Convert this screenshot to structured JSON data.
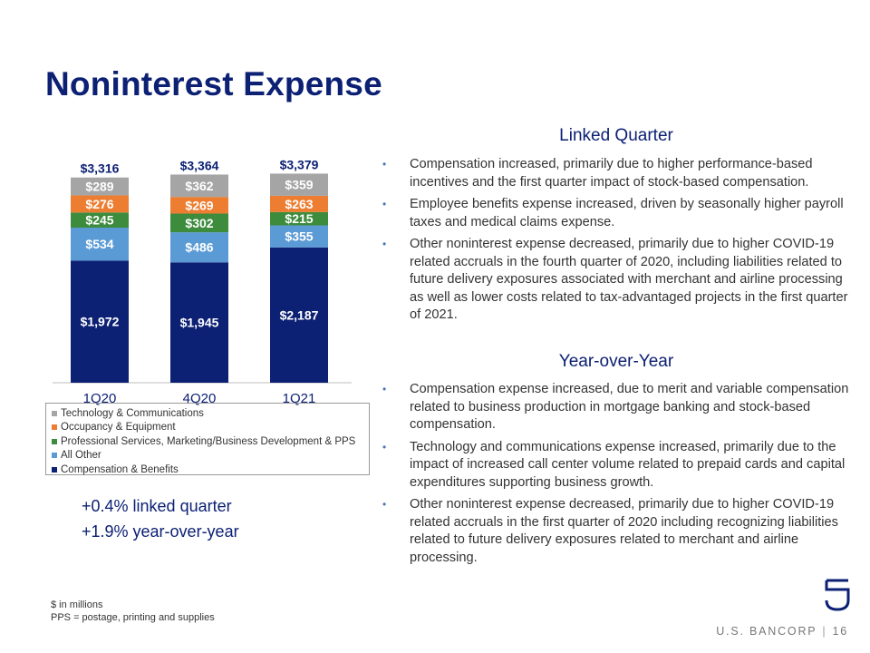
{
  "title": "Noninterest Expense",
  "chart_data": {
    "type": "bar",
    "stacked": true,
    "categories": [
      "1Q20",
      "4Q20",
      "1Q21"
    ],
    "totals": [
      "$3,316",
      "$3,364",
      "$3,379"
    ],
    "series": [
      {
        "name": "Compensation & Benefits",
        "color": "#0c2074",
        "values": [
          1972,
          1945,
          2187
        ],
        "labels": [
          "$1,972",
          "$1,945",
          "$2,187"
        ]
      },
      {
        "name": "All Other",
        "color": "#5b9bd5",
        "values": [
          534,
          486,
          355
        ],
        "labels": [
          "$534",
          "$486",
          "$355"
        ]
      },
      {
        "name": "Professional Services, Marketing/Business Development & PPS",
        "color": "#3d8b3d",
        "values": [
          245,
          302,
          215
        ],
        "labels": [
          "$245",
          "$302",
          "$215"
        ]
      },
      {
        "name": "Occupancy & Equipment",
        "color": "#ed7d31",
        "values": [
          276,
          269,
          263
        ],
        "labels": [
          "$276",
          "$269",
          "$263"
        ]
      },
      {
        "name": "Technology & Communications",
        "color": "#a5a5a5",
        "values": [
          289,
          362,
          359
        ],
        "labels": [
          "$289",
          "$362",
          "$359"
        ]
      }
    ],
    "legend_order": [
      "Technology & Communications",
      "Occupancy & Equipment",
      "Professional Services, Marketing/Business Development & PPS",
      "All Other",
      "Compensation & Benefits"
    ],
    "legend_position": "bottom",
    "ylim": [
      0,
      3400
    ]
  },
  "changes": {
    "linked": "+0.4% linked quarter",
    "yoy": "+1.9% year-over-year"
  },
  "linked_quarter": {
    "heading": "Linked Quarter",
    "bullets": [
      "Compensation increased, primarily due to higher performance-based incentives and the first quarter impact of stock-based compensation.",
      "Employee benefits expense increased, driven by seasonally higher payroll taxes and medical claims expense.",
      "Other noninterest expense decreased, primarily due to higher COVID-19 related accruals in the fourth quarter of 2020, including liabilities related to future delivery exposures associated with merchant and airline processing as well as lower costs related to tax-advantaged projects in the first quarter of 2021."
    ]
  },
  "year_over_year": {
    "heading": "Year-over-Year",
    "bullets": [
      "Compensation expense increased, due to merit and variable compensation related to business production in mortgage banking and stock-based compensation.",
      "Technology and communications expense increased, primarily due to the impact of increased call center volume related to prepaid cards and capital expenditures supporting business growth.",
      "Other noninterest expense decreased, primarily due to higher COVID-19 related accruals in the first quarter of 2020 including recognizing liabilities related to future delivery exposures related to merchant and airline processing."
    ]
  },
  "bullet_glyph": "•",
  "footnotes": [
    "$ in millions",
    "PPS = postage, printing and supplies"
  ],
  "brand": {
    "name": "U.S. BANCORP",
    "separator": "|",
    "page": "16",
    "logo_icon": "us-bancorp-shield-icon"
  }
}
